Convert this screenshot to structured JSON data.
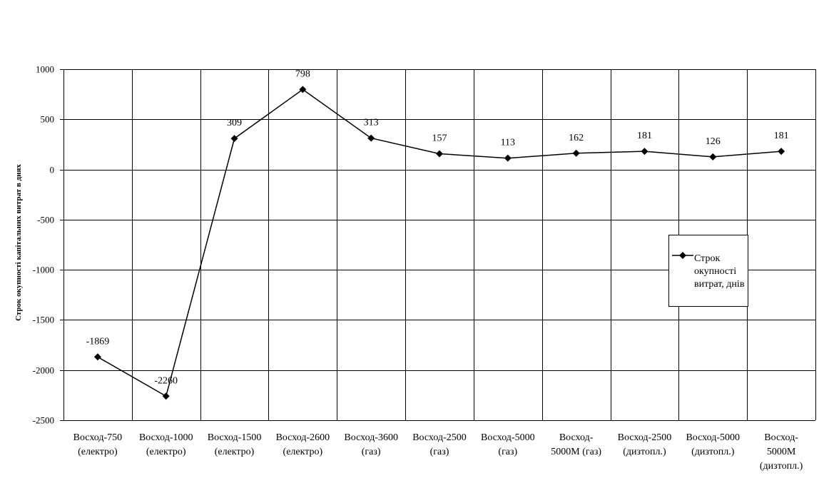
{
  "chart_data": {
    "type": "line",
    "title": "",
    "xlabel": "",
    "ylabel": "Строк окупності капітальних витрат в днях",
    "ylim": [
      -2500,
      1000
    ],
    "yticks": [
      1000,
      500,
      0,
      -500,
      -1000,
      -1500,
      -2000,
      -2500
    ],
    "ytick_labels": [
      "1000",
      "500",
      "0",
      "-500",
      "-1000",
      "-1500",
      "-2000",
      "-2500"
    ],
    "grid": true,
    "legend_position": "right",
    "categories": [
      [
        "Восход-750",
        "(електро)"
      ],
      [
        "Восход-1000",
        "(електро)"
      ],
      [
        "Восход-1500",
        "(електро)"
      ],
      [
        "Восход-2600",
        "(електро)"
      ],
      [
        "Восход-3600",
        "(газ)"
      ],
      [
        "Восход-2500",
        "(газ)"
      ],
      [
        "Восход-5000",
        "(газ)"
      ],
      [
        "Восход-",
        "5000М (газ)"
      ],
      [
        "Восход-2500",
        "(дизтопл.)"
      ],
      [
        "Восход-5000",
        "(дизтопл.)"
      ],
      [
        "Восход-",
        "5000М",
        "(дизтопл.)"
      ]
    ],
    "series": [
      {
        "name": "Строк окупності витрат, днів",
        "values": [
          -1869,
          -2260,
          309,
          798,
          313,
          157,
          113,
          162,
          181,
          126,
          181
        ],
        "data_labels": [
          "-1869",
          "-2260",
          "309",
          "798",
          "313",
          "157",
          "113",
          "162",
          "181",
          "126",
          "181"
        ]
      }
    ]
  }
}
